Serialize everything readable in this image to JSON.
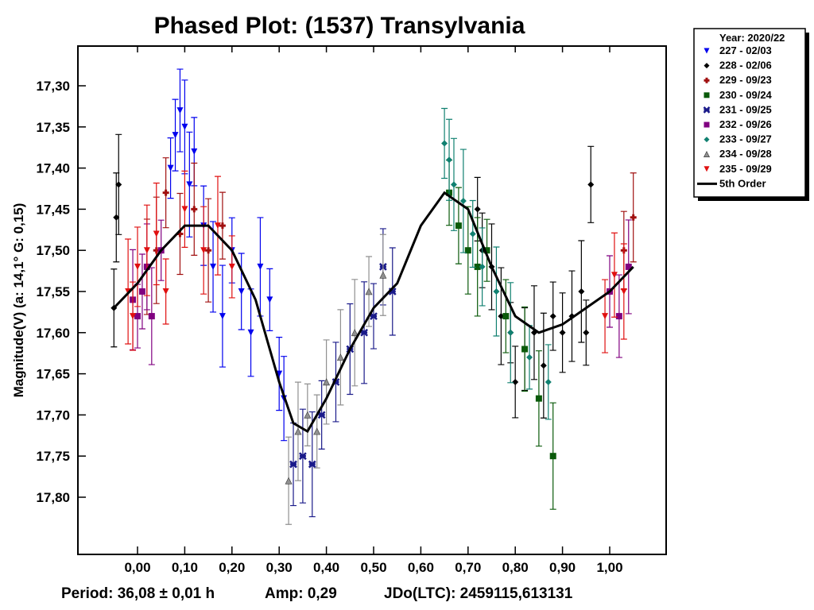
{
  "chart_data": {
    "type": "scatter",
    "title": "Phased Plot: (1537) Transylvania",
    "ylabel": "Magnitude(V)  (a: 14,1°  G: 0,15)",
    "xlabel": "",
    "xlim": [
      -0.126,
      1.12
    ],
    "ylim": [
      17.87,
      17.25
    ],
    "xticks": [
      "0,00",
      "0,10",
      "0,20",
      "0,30",
      "0,40",
      "0,50",
      "0,60",
      "0,70",
      "0,80",
      "0,90",
      "1,00"
    ],
    "yticks": [
      "17,30",
      "17,35",
      "17,40",
      "17,45",
      "17,50",
      "17,55",
      "17,60",
      "17,65",
      "17,70",
      "17,75",
      "17,80"
    ],
    "footer": {
      "period": "Period: 36,08 ± 0,01 h",
      "amp": "Amp: 0,29",
      "jdo": "JDo(LTC): 2459115,613131"
    },
    "legend": {
      "title": "Year: 2020/22",
      "placement": "outside-top-right"
    },
    "series": [
      {
        "name": "227 - 02/03",
        "color": "#0000ee",
        "marker": "tri-down",
        "x": [
          0.07,
          0.08,
          0.09,
          0.1,
          0.11,
          0.12,
          0.14,
          0.16,
          0.18,
          0.2,
          0.22,
          0.24,
          0.26,
          0.28,
          0.3,
          0.31
        ],
        "y": [
          17.4,
          17.36,
          17.33,
          17.35,
          17.42,
          17.38,
          17.47,
          17.52,
          17.58,
          17.5,
          17.55,
          17.6,
          17.52,
          17.56,
          17.65,
          17.68
        ]
      },
      {
        "name": "228 - 02/06",
        "color": "#000000",
        "marker": "diamond",
        "x": [
          -0.05,
          -0.045,
          -0.04,
          0.72,
          0.73,
          0.75,
          0.77,
          0.79,
          0.8,
          0.82,
          0.84,
          0.86,
          0.88,
          0.9,
          0.92,
          0.94,
          0.95,
          0.96
        ],
        "y": [
          17.57,
          17.46,
          17.42,
          17.45,
          17.5,
          17.52,
          17.58,
          17.6,
          17.66,
          17.62,
          17.6,
          17.64,
          17.58,
          17.6,
          17.58,
          17.55,
          17.6,
          17.42
        ]
      },
      {
        "name": "229 - 09/23",
        "color": "#a01010",
        "marker": "plus",
        "x": [
          0.02,
          0.04,
          0.06,
          0.09,
          0.12,
          0.15,
          0.18,
          1.03,
          1.05
        ],
        "y": [
          17.52,
          17.5,
          17.43,
          17.48,
          17.45,
          17.5,
          17.47,
          17.5,
          17.46
        ]
      },
      {
        "name": "230 - 09/24",
        "color": "#0a5a0a",
        "marker": "square",
        "x": [
          0.66,
          0.68,
          0.7,
          0.72,
          0.74,
          0.78,
          0.82,
          0.85,
          0.88
        ],
        "y": [
          17.43,
          17.47,
          17.5,
          17.52,
          17.5,
          17.58,
          17.62,
          17.68,
          17.75
        ]
      },
      {
        "name": "231 - 09/25",
        "color": "#1a1a8a",
        "marker": "star",
        "x": [
          0.33,
          0.35,
          0.37,
          0.39,
          0.42,
          0.45,
          0.48,
          0.5,
          0.52,
          0.54
        ],
        "y": [
          17.76,
          17.75,
          17.76,
          17.7,
          17.66,
          17.62,
          17.6,
          17.58,
          17.52,
          17.55
        ]
      },
      {
        "name": "232 - 09/26",
        "color": "#800080",
        "marker": "square",
        "x": [
          -0.01,
          0.0,
          0.01,
          0.02,
          0.03,
          0.05,
          1.0,
          1.02,
          1.04
        ],
        "y": [
          17.56,
          17.58,
          17.55,
          17.52,
          17.58,
          17.5,
          17.55,
          17.58,
          17.52
        ]
      },
      {
        "name": "233 - 09/27",
        "color": "#108070",
        "marker": "diamond",
        "x": [
          0.65,
          0.66,
          0.67,
          0.69,
          0.71,
          0.73,
          0.76,
          0.79,
          0.83,
          0.87
        ],
        "y": [
          17.37,
          17.39,
          17.42,
          17.44,
          17.48,
          17.52,
          17.55,
          17.6,
          17.63,
          17.66
        ]
      },
      {
        "name": "234 - 09/28",
        "color": "#909090",
        "marker": "triangle",
        "x": [
          0.32,
          0.34,
          0.36,
          0.38,
          0.4,
          0.43,
          0.46,
          0.49,
          0.52
        ],
        "y": [
          17.78,
          17.72,
          17.7,
          17.72,
          17.66,
          17.63,
          17.6,
          17.55,
          17.53
        ]
      },
      {
        "name": "235 - 09/29",
        "color": "#e01010",
        "marker": "tri-down",
        "x": [
          -0.02,
          -0.01,
          0.0,
          0.02,
          0.04,
          0.06,
          0.1,
          0.14,
          0.17,
          0.2,
          0.99,
          1.01,
          1.03
        ],
        "y": [
          17.55,
          17.58,
          17.52,
          17.5,
          17.48,
          17.55,
          17.45,
          17.5,
          17.47,
          17.52,
          17.58,
          17.53,
          17.55
        ]
      }
    ],
    "fit": {
      "name": "5th Order",
      "color": "#000000",
      "x": [
        -0.05,
        0.0,
        0.05,
        0.1,
        0.15,
        0.2,
        0.25,
        0.3,
        0.33,
        0.36,
        0.4,
        0.45,
        0.5,
        0.55,
        0.6,
        0.65,
        0.7,
        0.75,
        0.8,
        0.85,
        0.9,
        0.95,
        1.0,
        1.05
      ],
      "y": [
        17.57,
        17.54,
        17.5,
        17.47,
        17.47,
        17.5,
        17.56,
        17.66,
        17.71,
        17.72,
        17.68,
        17.62,
        17.57,
        17.54,
        17.47,
        17.43,
        17.45,
        17.52,
        17.58,
        17.6,
        17.59,
        17.57,
        17.55,
        17.52
      ]
    }
  }
}
